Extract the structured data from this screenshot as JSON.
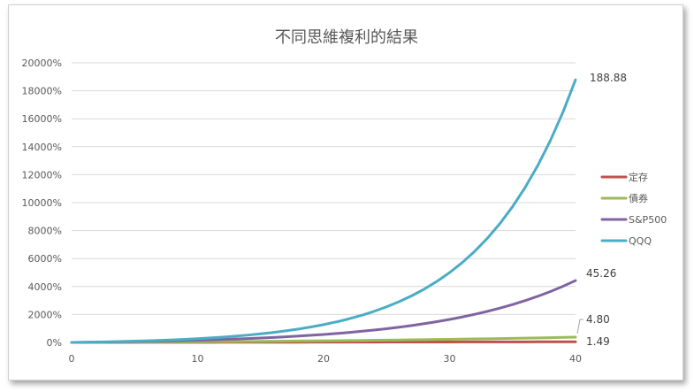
{
  "chart_data": {
    "type": "line",
    "title": "不同思維複利的結果",
    "xlabel": "",
    "ylabel": "",
    "xlim": [
      0,
      40
    ],
    "ylim": [
      0,
      20000
    ],
    "x_ticks": [
      0,
      10,
      20,
      30,
      40
    ],
    "y_ticks": [
      0,
      2000,
      4000,
      6000,
      8000,
      10000,
      12000,
      14000,
      16000,
      18000,
      20000
    ],
    "y_tick_labels": [
      "0%",
      "2000%",
      "4000%",
      "6000%",
      "8000%",
      "10000%",
      "12000%",
      "14000%",
      "16000%",
      "18000%",
      "20000%"
    ],
    "grid": true,
    "legend_position": "right",
    "series": [
      {
        "name": "定存",
        "color": "#c0504d",
        "rate": 0.01,
        "end_label": "1.49"
      },
      {
        "name": "債券",
        "color": "#9bbb59",
        "rate": 0.04,
        "end_label": "4.80"
      },
      {
        "name": "S&P500",
        "color": "#8064a2",
        "rate": 0.1,
        "end_label": "45.26"
      },
      {
        "name": "QQQ",
        "color": "#4bacc6",
        "rate": 0.14,
        "end_label": "188.88"
      }
    ]
  }
}
